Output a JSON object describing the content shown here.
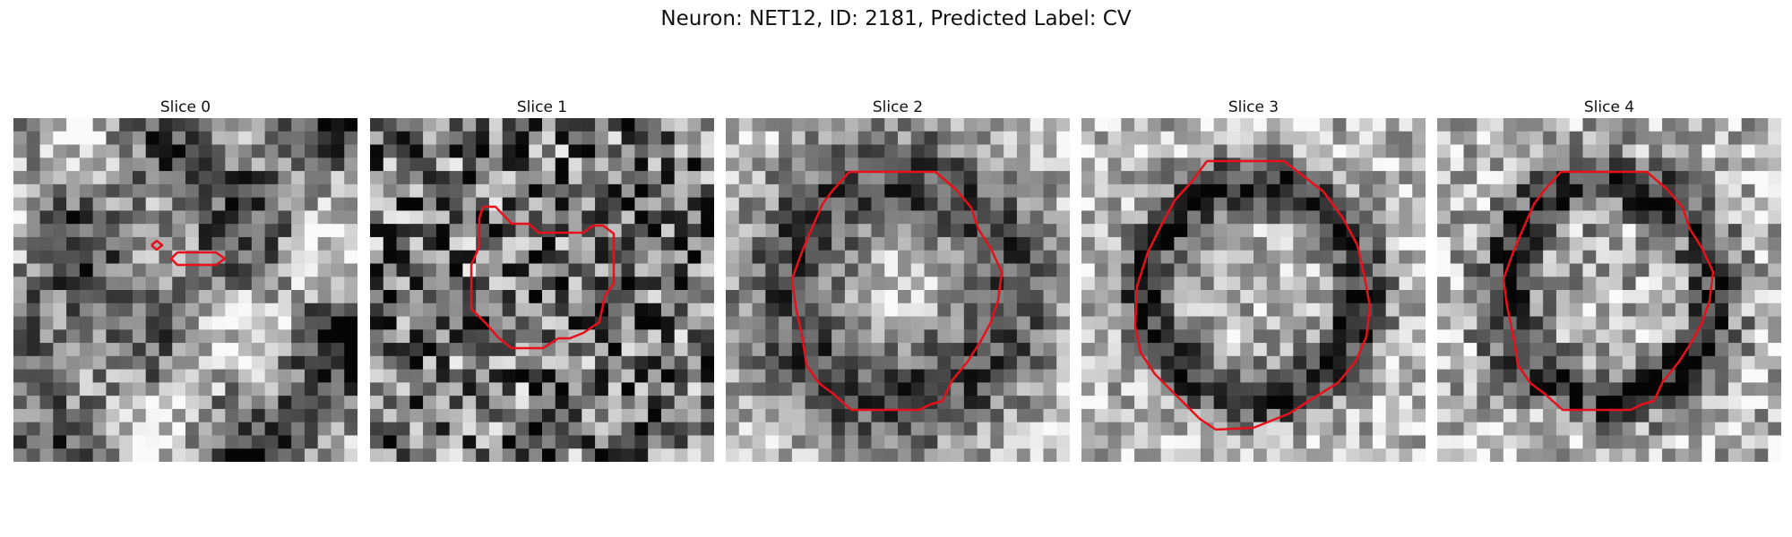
{
  "figure": {
    "title": "Neuron: NET12, ID: 2181, Predicted Label: CV"
  },
  "panels": [
    {
      "title": "Slice 0",
      "seed": 11,
      "contrast": 0.65,
      "pattern": "blobs",
      "contour": "small-artifacts"
    },
    {
      "title": "Slice 1",
      "seed": 23,
      "contrast": 0.95,
      "pattern": "noise",
      "contour": "irregular"
    },
    {
      "title": "Slice 2",
      "seed": 37,
      "contrast": 0.55,
      "pattern": "ring",
      "contour": "octagon"
    },
    {
      "title": "Slice 3",
      "seed": 41,
      "contrast": 0.6,
      "pattern": "ring-dark",
      "contour": "octagon-large"
    },
    {
      "title": "Slice 4",
      "seed": 53,
      "contrast": 0.7,
      "pattern": "ring-dark",
      "contour": "octagon"
    }
  ],
  "colors": {
    "contour": "#e8101a",
    "background": "#ffffff"
  },
  "image": {
    "grid_cells": 26,
    "colormap": "grayscale"
  }
}
